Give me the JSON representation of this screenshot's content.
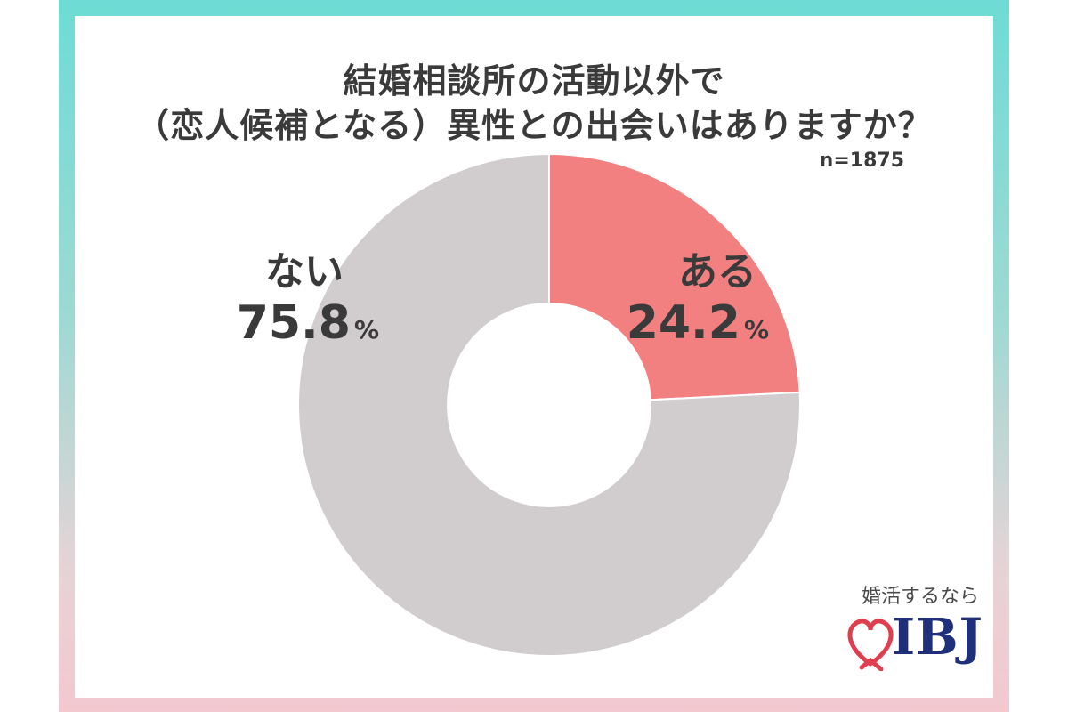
{
  "chart_data": {
    "type": "pie",
    "title_line1": "結婚相談所の活動以外で",
    "title_line2": "（恋人候補となる）異性との出会いはありますか？",
    "sample": "n=1875",
    "slices": [
      {
        "label": "ある",
        "value": 24.2,
        "display": "24.2",
        "unit": "%",
        "color": "#f38080"
      },
      {
        "label": "ない",
        "value": 75.8,
        "display": "75.8",
        "unit": "%",
        "color": "#d1cdcf"
      }
    ]
  },
  "logo": {
    "tagline": "婚活するなら",
    "brand": "IBJ",
    "heart_color": "#e03e4e",
    "brand_color": "#1f2f7a"
  }
}
